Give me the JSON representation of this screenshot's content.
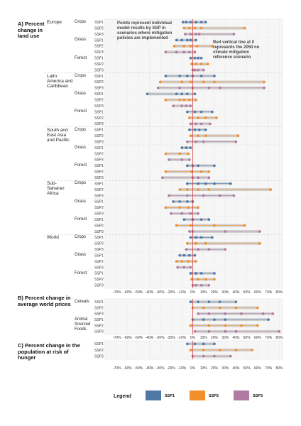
{
  "chart_data": [
    {
      "type": "dot-range",
      "title": "A) Percent change in land use",
      "xlim": [
        -81,
        83
      ],
      "xticks": [
        {
          "value": -70,
          "label": "-70%"
        },
        {
          "value": -60,
          "label": "-60%"
        },
        {
          "value": -50,
          "label": "-50%"
        },
        {
          "value": -40,
          "label": "-40%"
        },
        {
          "value": -30,
          "label": "-30%"
        },
        {
          "value": -20,
          "label": "-20%"
        },
        {
          "value": -10,
          "label": "-10%"
        },
        {
          "value": 0,
          "label": "0%"
        },
        {
          "value": 10,
          "label": "10%"
        },
        {
          "value": 20,
          "label": "20%"
        },
        {
          "value": 30,
          "label": "30%"
        },
        {
          "value": 40,
          "label": "40%"
        },
        {
          "value": 50,
          "label": "50%"
        },
        {
          "value": 60,
          "label": "60%"
        },
        {
          "value": 70,
          "label": "70%"
        },
        {
          "value": 80,
          "label": "80%"
        }
      ],
      "reference_line": 0,
      "annotations": [
        "Points represent individual model results by SSP in scenarios where mitigation policies are implemented",
        "Red vertical line at 0 represents the 2050 no climate mitigation reference scenario"
      ],
      "groups": [
        {
          "name": "Europe",
          "subgroups": [
            {
              "name": "Crops",
              "rows": [
                {
                  "name": "SSP1",
                  "values": [
                    -9,
                    -6,
                    -2,
                    3,
                    8,
                    12
                  ]
                },
                {
                  "name": "SSP2",
                  "values": [
                    -8,
                    -3,
                    2,
                    8,
                    48
                  ]
                },
                {
                  "name": "SSP3",
                  "values": [
                    -7,
                    -2,
                    3,
                    6,
                    38
                  ]
                }
              ]
            },
            {
              "name": "Grass",
              "rows": [
                {
                  "name": "SSP1",
                  "values": [
                    -15,
                    -10,
                    -5,
                    -2,
                    3
                  ]
                },
                {
                  "name": "SSP2",
                  "values": [
                    -17,
                    -8,
                    -2,
                    4,
                    18
                  ]
                },
                {
                  "name": "SSP3",
                  "values": [
                    -25,
                    -15,
                    -8,
                    -3,
                    2
                  ]
                }
              ]
            },
            {
              "name": "Forest",
              "rows": [
                {
                  "name": "SSP1",
                  "values": [
                    -2,
                    2,
                    5,
                    8
                  ]
                },
                {
                  "name": "SSP2",
                  "values": [
                    -1,
                    3,
                    8,
                    14
                  ]
                },
                {
                  "name": "SSP3",
                  "values": [
                    0,
                    2,
                    5,
                    10
                  ]
                }
              ]
            }
          ]
        },
        {
          "name": "Latin America and Caribbean",
          "subgroups": [
            {
              "name": "Crops",
              "rows": [
                {
                  "name": "SSP1",
                  "values": [
                    -25,
                    -12,
                    -5,
                    0,
                    8,
                    20
                  ]
                },
                {
                  "name": "SSP2",
                  "values": [
                    -30,
                    -10,
                    -2,
                    10,
                    20,
                    66
                  ]
                },
                {
                  "name": "SSP3",
                  "values": [
                    -32,
                    -12,
                    0,
                    15,
                    25,
                    66
                  ]
                }
              ]
            },
            {
              "name": "Grass",
              "rows": [
                {
                  "name": "SSP1",
                  "values": [
                    -42,
                    -15,
                    -10,
                    -5,
                    2
                  ]
                },
                {
                  "name": "SSP2",
                  "values": [
                    -25,
                    -12,
                    -8,
                    -3,
                    3
                  ]
                },
                {
                  "name": "SSP3",
                  "values": [
                    -18,
                    -10,
                    -6,
                    -2
                  ]
                }
              ]
            },
            {
              "name": "Forest",
              "rows": [
                {
                  "name": "SSP1",
                  "values": [
                    -5,
                    2,
                    8,
                    18
                  ]
                },
                {
                  "name": "SSP2",
                  "values": [
                    -3,
                    5,
                    12,
                    22
                  ]
                },
                {
                  "name": "SSP3",
                  "values": [
                    -2,
                    3,
                    8,
                    16
                  ]
                }
              ]
            }
          ]
        },
        {
          "name": "South and East Asia and Pacific",
          "subgroups": [
            {
              "name": "Crops",
              "rows": [
                {
                  "name": "SSP1",
                  "values": [
                    -3,
                    2,
                    6,
                    12
                  ]
                },
                {
                  "name": "SSP2",
                  "values": [
                    -2,
                    5,
                    12,
                    42
                  ]
                },
                {
                  "name": "SSP3",
                  "values": [
                    -5,
                    3,
                    10,
                    40
                  ]
                }
              ]
            },
            {
              "name": "Grass",
              "rows": [
                {
                  "name": "SSP1",
                  "values": [
                    -10,
                    -6,
                    -2
                  ]
                },
                {
                  "name": "SSP2",
                  "values": [
                    -25,
                    -12,
                    -4
                  ]
                },
                {
                  "name": "SSP3",
                  "values": [
                    -22,
                    -10,
                    -3
                  ]
                }
              ]
            },
            {
              "name": "Forest",
              "rows": [
                {
                  "name": "SSP1",
                  "values": [
                    -5,
                    0,
                    5,
                    20
                  ]
                },
                {
                  "name": "SSP2",
                  "values": [
                    -25,
                    -1,
                    8,
                    15
                  ]
                },
                {
                  "name": "SSP3",
                  "values": [
                    -28,
                    0,
                    5,
                    15
                  ]
                }
              ]
            }
          ]
        },
        {
          "name": "Sub-Saharan Africa",
          "subgroups": [
            {
              "name": "Crops",
              "rows": [
                {
                  "name": "SSP1",
                  "values": [
                    -5,
                    5,
                    12,
                    20,
                    35
                  ]
                },
                {
                  "name": "SSP2",
                  "values": [
                    -12,
                    -5,
                    5,
                    15,
                    72
                  ]
                },
                {
                  "name": "SSP3",
                  "values": [
                    -22,
                    -5,
                    10,
                    25,
                    38
                  ]
                }
              ]
            },
            {
              "name": "Grass",
              "rows": [
                {
                  "name": "SSP1",
                  "values": [
                    -18,
                    -12,
                    -5,
                    0
                  ]
                },
                {
                  "name": "SSP2",
                  "values": [
                    -25,
                    -12,
                    -4,
                    5
                  ]
                },
                {
                  "name": "SSP3",
                  "values": [
                    -20,
                    -10,
                    -2,
                    5
                  ]
                }
              ]
            },
            {
              "name": "Forest",
              "rows": [
                {
                  "name": "SSP1",
                  "values": [
                    -8,
                    0,
                    8,
                    15
                  ]
                },
                {
                  "name": "SSP2",
                  "values": [
                    -15,
                    -2,
                    20,
                    48
                  ]
                },
                {
                  "name": "SSP3",
                  "values": [
                    -3,
                    0,
                    30,
                    62
                  ]
                }
              ]
            }
          ]
        },
        {
          "name": "World",
          "subgroups": [
            {
              "name": "Crops",
              "rows": [
                {
                  "name": "SSP1",
                  "values": [
                    -2,
                    3,
                    8,
                    18
                  ]
                },
                {
                  "name": "SSP2",
                  "values": [
                    -5,
                    3,
                    12,
                    62
                  ]
                },
                {
                  "name": "SSP3",
                  "values": [
                    -6,
                    5,
                    15,
                    30
                  ]
                }
              ]
            },
            {
              "name": "Grass",
              "rows": [
                {
                  "name": "SSP1",
                  "values": [
                    -12,
                    -8,
                    -3,
                    2
                  ]
                },
                {
                  "name": "SSP2",
                  "values": [
                    -15,
                    -10,
                    -4,
                    3
                  ]
                },
                {
                  "name": "SSP3",
                  "values": [
                    -14,
                    -8,
                    -2
                  ]
                }
              ]
            },
            {
              "name": "Forest",
              "rows": [
                {
                  "name": "SSP1",
                  "values": [
                    -2,
                    3,
                    8,
                    20
                  ]
                },
                {
                  "name": "SSP2",
                  "values": [
                    -1,
                    5,
                    12,
                    20
                  ]
                },
                {
                  "name": "SSP3",
                  "values": [
                    0,
                    3,
                    8,
                    15
                  ]
                }
              ]
            }
          ]
        }
      ]
    },
    {
      "type": "dot-range",
      "title": "B) Percent change in average world prices",
      "xlim": [
        -81,
        83
      ],
      "xticks": [
        {
          "value": -70,
          "label": "-70%"
        },
        {
          "value": -60,
          "label": "-60%"
        },
        {
          "value": -50,
          "label": "-50%"
        },
        {
          "value": -40,
          "label": "-40%"
        },
        {
          "value": -30,
          "label": "-30%"
        },
        {
          "value": -20,
          "label": "-20%"
        },
        {
          "value": -10,
          "label": "-10%"
        },
        {
          "value": 0,
          "label": "0%"
        },
        {
          "value": 10,
          "label": "10%"
        },
        {
          "value": 20,
          "label": "20%"
        },
        {
          "value": 30,
          "label": "30%"
        },
        {
          "value": 40,
          "label": "40%"
        },
        {
          "value": 50,
          "label": "50%"
        },
        {
          "value": 60,
          "label": "60%"
        },
        {
          "value": 70,
          "label": "70%"
        },
        {
          "value": 80,
          "label": "80%"
        }
      ],
      "reference_line": 0,
      "groups": [
        {
          "subgroups": [
            {
              "name": "Cereals",
              "rows": [
                {
                  "name": "SSP1",
                  "values": [
                    -2,
                    5,
                    15,
                    25,
                    40
                  ]
                },
                {
                  "name": "SSP2",
                  "values": [
                    0,
                    10,
                    25,
                    40,
                    60
                  ]
                },
                {
                  "name": "SSP3",
                  "values": [
                    5,
                    15,
                    30,
                    45,
                    65,
                    74
                  ]
                }
              ]
            },
            {
              "name": "Animal Sourced Foods",
              "rows": [
                {
                  "name": "SSP1",
                  "values": [
                    0,
                    10,
                    20,
                    30,
                    70
                  ]
                },
                {
                  "name": "SSP2",
                  "values": [
                    -2,
                    15,
                    30,
                    45,
                    60
                  ]
                },
                {
                  "name": "SSP3",
                  "values": [
                    2,
                    15,
                    30,
                    40,
                    80
                  ]
                }
              ]
            }
          ]
        }
      ]
    },
    {
      "type": "dot-range",
      "title": "C) Percent change in the population at risk of hunger",
      "xlim": [
        -81,
        83
      ],
      "xticks": [
        {
          "value": -70,
          "label": "-70%"
        },
        {
          "value": -60,
          "label": "-60%"
        },
        {
          "value": -50,
          "label": "-50%"
        },
        {
          "value": -40,
          "label": "-40%"
        },
        {
          "value": -30,
          "label": "-30%"
        },
        {
          "value": -20,
          "label": "-20%"
        },
        {
          "value": -10,
          "label": "-10%"
        },
        {
          "value": 0,
          "label": "0%"
        },
        {
          "value": 10,
          "label": "10%"
        },
        {
          "value": 20,
          "label": "20%"
        },
        {
          "value": 30,
          "label": "30%"
        },
        {
          "value": 40,
          "label": "40%"
        },
        {
          "value": 50,
          "label": "50%"
        },
        {
          "value": 60,
          "label": "60%"
        },
        {
          "value": 70,
          "label": "70%"
        },
        {
          "value": 80,
          "label": "80%"
        }
      ],
      "reference_line": 0,
      "groups": [
        {
          "subgroups": [
            {
              "rows": [
                {
                  "name": "SSP1",
                  "values": [
                    -5,
                    2,
                    10,
                    20
                  ]
                },
                {
                  "name": "SSP2",
                  "values": [
                    -2,
                    10,
                    25,
                    40,
                    55
                  ]
                },
                {
                  "name": "SSP3",
                  "values": [
                    0,
                    10,
                    20,
                    35
                  ]
                }
              ]
            }
          ]
        }
      ]
    }
  ],
  "legend": {
    "title": "Legend",
    "items": [
      {
        "name": "SSP1",
        "color": "#4e79a7"
      },
      {
        "name": "SSP2",
        "color": "#f28e2b"
      },
      {
        "name": "SSP3",
        "color": "#b07aa1"
      }
    ]
  }
}
